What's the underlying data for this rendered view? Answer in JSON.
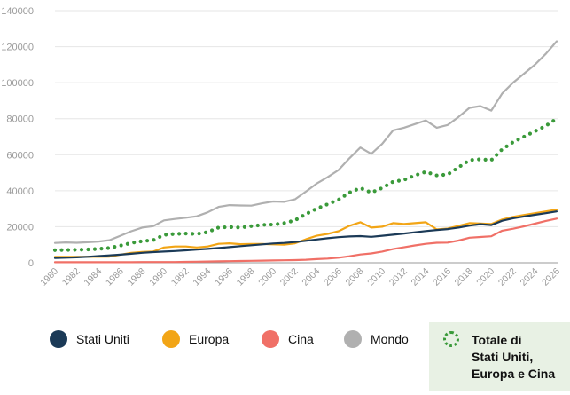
{
  "chart_data": {
    "type": "line",
    "x": [
      1980,
      1981,
      1982,
      1983,
      1984,
      1985,
      1986,
      1987,
      1988,
      1989,
      1990,
      1991,
      1992,
      1993,
      1994,
      1995,
      1996,
      1997,
      1998,
      1999,
      2000,
      2001,
      2002,
      2003,
      2004,
      2005,
      2006,
      2007,
      2008,
      2009,
      2010,
      2011,
      2012,
      2013,
      2014,
      2015,
      2016,
      2017,
      2018,
      2019,
      2020,
      2021,
      2022,
      2023,
      2024,
      2025,
      2026
    ],
    "x_tick_labels": [
      "1980",
      "1982",
      "1984",
      "1986",
      "1988",
      "1990",
      "1992",
      "1994",
      "1996",
      "1998",
      "2000",
      "2002",
      "2004",
      "2006",
      "2008",
      "2010",
      "2012",
      "2014",
      "2016",
      "2018",
      "2020",
      "2022",
      "2024",
      "2026"
    ],
    "y_tick_labels": [
      "0",
      "20000",
      "40000",
      "60000",
      "80000",
      "100000",
      "120000",
      "140000"
    ],
    "ylim": [
      0,
      140000
    ],
    "xlim": [
      1980,
      2026
    ],
    "grid": "horizontal",
    "series": [
      {
        "name": "Mondo",
        "color": "#b0b0b0",
        "style": "solid",
        "values": [
          11000,
          11300,
          11100,
          11400,
          11800,
          12500,
          15000,
          17500,
          19500,
          20300,
          23500,
          24300,
          25000,
          25800,
          28000,
          31000,
          32000,
          31800,
          31700,
          33000,
          34000,
          33800,
          35200,
          39500,
          44000,
          47500,
          51500,
          58000,
          64000,
          60500,
          66000,
          73500,
          75000,
          77000,
          79000,
          75000,
          76500,
          81000,
          86000,
          87000,
          84500,
          94000,
          100000,
          105000,
          110000,
          116000,
          123000
        ]
      },
      {
        "name": "Totale di Stati Uniti, Europa e Cina",
        "color": "#3a9a3a",
        "style": "dotted",
        "values": [
          7000,
          7100,
          7200,
          7400,
          7700,
          8200,
          9500,
          11000,
          12000,
          12500,
          15500,
          16000,
          16200,
          16000,
          17000,
          19500,
          19800,
          19500,
          20300,
          21000,
          21200,
          22000,
          23500,
          27000,
          30000,
          32500,
          35000,
          39000,
          41500,
          39000,
          41500,
          45000,
          46000,
          48500,
          50500,
          48500,
          49000,
          53000,
          57000,
          57500,
          57000,
          63000,
          67000,
          70000,
          73000,
          76000,
          80000
        ]
      },
      {
        "name": "Europa",
        "color": "#f2a516",
        "style": "solid",
        "values": [
          3300,
          3300,
          3300,
          3300,
          3300,
          3400,
          4500,
          5500,
          6000,
          6200,
          8500,
          9000,
          9000,
          8500,
          9000,
          10500,
          10800,
          10300,
          10400,
          10400,
          10200,
          10000,
          10800,
          13000,
          15000,
          16000,
          17500,
          20500,
          22500,
          19500,
          20000,
          22000,
          21500,
          22000,
          22500,
          18500,
          19000,
          20500,
          22000,
          21800,
          21500,
          24000,
          25500,
          26500,
          27500,
          28500,
          29500
        ]
      },
      {
        "name": "Stati Uniti",
        "color": "#1b3a57",
        "style": "solid",
        "values": [
          2600,
          2800,
          3000,
          3300,
          3700,
          4100,
          4500,
          5000,
          5500,
          5900,
          6200,
          6500,
          6900,
          7300,
          7700,
          8200,
          8700,
          9200,
          9700,
          10200,
          10700,
          11000,
          11500,
          12200,
          12900,
          13600,
          14200,
          14600,
          14800,
          14400,
          15000,
          15600,
          16200,
          16900,
          17600,
          18200,
          18700,
          19500,
          20600,
          21400,
          20900,
          23300,
          24700,
          25700,
          26600,
          27500,
          28500
        ]
      },
      {
        "name": "Cina",
        "color": "#f07067",
        "style": "solid",
        "values": [
          300,
          300,
          300,
          300,
          300,
          300,
          300,
          300,
          400,
          400,
          400,
          400,
          500,
          600,
          700,
          800,
          900,
          1000,
          1100,
          1200,
          1300,
          1400,
          1500,
          1700,
          2000,
          2300,
          2800,
          3600,
          4600,
          5200,
          6200,
          7600,
          8600,
          9600,
          10500,
          11100,
          11200,
          12300,
          13900,
          14300,
          14700,
          17800,
          18900,
          20200,
          21700,
          23200,
          24500
        ]
      }
    ]
  },
  "legend": {
    "items": [
      {
        "label": "Stati Uniti",
        "color": "#1b3a57"
      },
      {
        "label": "Europa",
        "color": "#f2a516"
      },
      {
        "label": "Cina",
        "color": "#f07067"
      },
      {
        "label": "Mondo",
        "color": "#b0b0b0"
      }
    ],
    "total": {
      "label": "Totale di\nStati Uniti,\nEuropa e Cina",
      "color": "#3a9a3a",
      "background": "#e8f1e4"
    }
  }
}
